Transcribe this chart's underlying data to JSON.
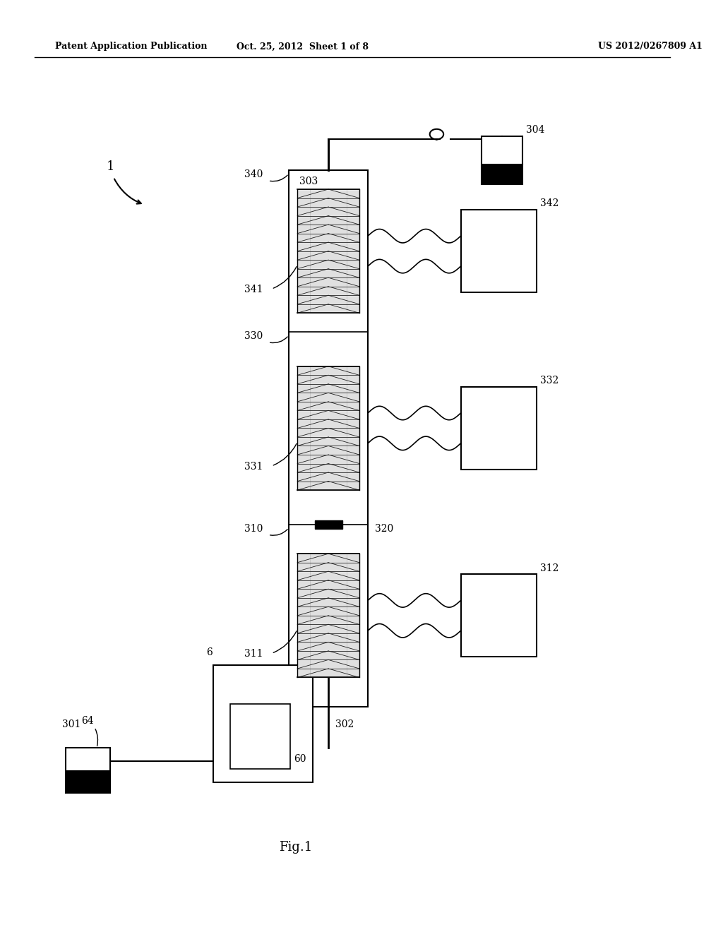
{
  "background_color": "#ffffff",
  "header_left": "Patent Application Publication",
  "header_center": "Oct. 25, 2012  Sheet 1 of 8",
  "header_right": "US 2012/0267809 A1",
  "footer_label": "Fig.1",
  "label_1": "1",
  "label_303": "303",
  "label_304": "304",
  "label_340": "340",
  "label_341": "341",
  "label_330": "330",
  "label_331": "331",
  "label_310": "310",
  "label_311": "311",
  "label_320": "320",
  "label_342": "342",
  "label_332": "332",
  "label_312": "312",
  "label_302": "302",
  "label_301": "301",
  "label_64": "64",
  "label_6": "6",
  "label_60": "60"
}
